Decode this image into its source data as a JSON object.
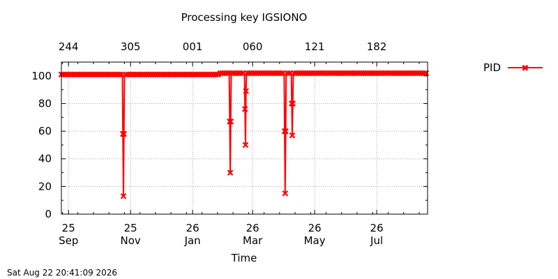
{
  "chart_data": {
    "type": "line",
    "title": "Processing key IGSIONO",
    "xlabel": "Time",
    "ylabel": "",
    "timestamp": "Sat Aug 22 20:41:09 2026",
    "ylim": [
      0,
      110
    ],
    "xlim_days": [
      -7,
      353
    ],
    "y_ticks": [
      0,
      20,
      40,
      60,
      80,
      100
    ],
    "x_ticks_bottom": [
      {
        "day": 0,
        "line1": "25",
        "line2": "Sep"
      },
      {
        "day": 61,
        "line1": "25",
        "line2": "Nov"
      },
      {
        "day": 122,
        "line1": "26",
        "line2": "Jan"
      },
      {
        "day": 181,
        "line1": "26",
        "line2": "Mar"
      },
      {
        "day": 242,
        "line1": "26",
        "line2": "May"
      },
      {
        "day": 303,
        "line1": "26",
        "line2": "Jul"
      }
    ],
    "x_ticks_top": [
      {
        "day": 0,
        "label": "244"
      },
      {
        "day": 61,
        "label": "305"
      },
      {
        "day": 122,
        "label": "001"
      },
      {
        "day": 181,
        "label": "060"
      },
      {
        "day": 242,
        "label": "121"
      },
      {
        "day": 303,
        "label": "182"
      }
    ],
    "grid": true,
    "legend_position": "top-right outside",
    "series": [
      {
        "name": "PID",
        "color": "#ff0000",
        "x": [
          -7,
          52,
          53,
          53.5,
          54,
          54.5,
          55,
          147,
          148,
          157,
          158,
          158.5,
          159,
          159.5,
          160,
          172,
          173,
          173.5,
          174,
          174.5,
          175,
          211,
          212,
          212.5,
          213,
          213.5,
          214,
          218,
          219,
          219.5,
          220,
          220.5,
          221,
          353
        ],
        "y": [
          101,
          101,
          101,
          58,
          13,
          58,
          101,
          101,
          102,
          102,
          102,
          67,
          30,
          67,
          102,
          102,
          102,
          76,
          50,
          89,
          102,
          102,
          102,
          60,
          15,
          60,
          102,
          102,
          102,
          80,
          57,
          80,
          102,
          102
        ],
        "markers_every_days": 2.2
      }
    ]
  }
}
